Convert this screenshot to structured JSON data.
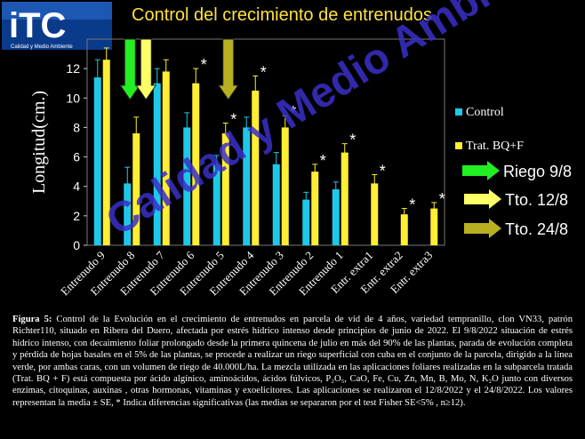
{
  "logo": {
    "text": "iTC",
    "subtitle": "Calidad y Medio Ambiente"
  },
  "title": "Control del crecimiento de entrenudos",
  "watermark": "Calidad y Medio Ambiente",
  "colors": {
    "control": "#1ec8e8",
    "trat": "#ffee33",
    "riego": "#22ee22",
    "tto12": "#ffff66",
    "tto24": "#b8b020",
    "text": "#ffffff",
    "title": "#ffe040"
  },
  "chart_data": {
    "type": "bar",
    "ylabel": "Longitud(cm.)",
    "ylim": [
      0,
      14
    ],
    "yticks": [
      0,
      2,
      4,
      6,
      8,
      10,
      12
    ],
    "categories": [
      "Entrenudo 9",
      "Entrenudo 8",
      "Entrenudo 7",
      "Entrenudo 6",
      "Entrenudo 5",
      "Entrenudo 4",
      "Entrenudo 3",
      "Entrenudo 2",
      "Entrenudo 1",
      "Entr. extra1",
      "Entr. extra2",
      "Entr. extra3"
    ],
    "series": [
      {
        "name": "Control",
        "color": "#1ec8e8",
        "values": [
          11.4,
          4.2,
          11.0,
          8.0,
          5.5,
          8.0,
          5.5,
          3.1,
          3.8,
          null,
          null,
          null
        ],
        "errors": [
          1.2,
          1.1,
          1.0,
          1.0,
          0.6,
          0.7,
          0.8,
          0.5,
          0.5,
          null,
          null,
          null
        ]
      },
      {
        "name": "Trat. BQ+F",
        "color": "#ffee33",
        "values": [
          12.6,
          7.6,
          11.8,
          11.0,
          7.6,
          10.5,
          8.0,
          5.0,
          6.3,
          4.2,
          2.1,
          2.5
        ],
        "errors": [
          0.8,
          1.1,
          0.8,
          1.0,
          0.7,
          1.0,
          0.8,
          0.5,
          0.6,
          0.6,
          0.4,
          0.4
        ]
      }
    ],
    "significance": [
      "Entrenudo 6",
      "Entrenudo 5",
      "Entrenudo 4",
      "Entrenudo 3",
      "Entrenudo 2",
      "Entrenudo 1",
      "Entr. extra1",
      "Entr. extra2",
      "Entr. extra3"
    ],
    "significance_symbol": "*",
    "legend": "right"
  },
  "events": [
    {
      "label": "Riego 9/8",
      "category": "Entrenudo 8",
      "color": "#22ee22"
    },
    {
      "label": "Tto. 12/8",
      "category": "Entrenudo 8",
      "color": "#ffff66"
    },
    {
      "label": "Tto. 24/8",
      "category": "Entrenudo 5",
      "color": "#b8b020"
    }
  ],
  "caption": {
    "label": "Figura 5:",
    "text": " Control de la Evolución en el crecimiento de entrenudos en parcela de vid de 4 años, variedad tempranillo, clon VN33, patrón Richter110, situado en Ribera del Duero, afectada por estrés hídrico intenso desde principios de junio de 2022. El 9/8/2022 situación de estrés hídrico intenso, con decaimiento foliar prolongado desde la primera quincena de julio en más del 90% de las plantas, parada de evolución completa y pérdida de hojas basales en el 5% de las plantas, se procede a realizar un riego superficial con cuba en el conjunto de la parcela, dirigido a la línea verde, por ambas caras, con un volumen de riego de 40.000L/ha. La mezcla utilizada en las aplicaciones foliares realizadas en la subparcela tratada (Trat. BQ + F) está compuesta por ácido algínico, aminoácidos, ácidos fúlvicos, P₂O₅, CaO, Fe, Cu, Zn, Mn, B, Mo, N, K₂O junto con diversos enzimas, citoquinas, auxinas , otras hormonas, vitaminas y exoelicitores. Las aplicaciones se realizaron el 12/8/2022 y el 24/8/2022. Los valores representan la media ± SE, * Indica diferencias significativas (las medias se separaron por el test Fisher SE<5% , n≥12)."
  }
}
